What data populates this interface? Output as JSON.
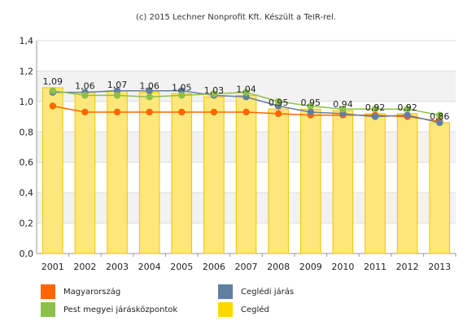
{
  "credit": "(c) 2015 Lechner Nonprofit Kft. Készült a TeIR-rel.",
  "chart_data": {
    "type": "bar",
    "categories": [
      "2001",
      "2002",
      "2003",
      "2004",
      "2005",
      "2006",
      "2007",
      "2008",
      "2009",
      "2010",
      "2011",
      "2012",
      "2013"
    ],
    "ylim": [
      0,
      1.4
    ],
    "yticks": [
      0,
      0.2,
      0.4,
      0.6,
      0.8,
      1.0,
      1.2,
      1.4
    ],
    "ytick_labels": [
      "0,0",
      "0,2",
      "0,4",
      "0,6",
      "0,8",
      "1,0",
      "1,2",
      "1,4"
    ],
    "grid": "horizontal",
    "legend_position": "bottom",
    "bar_series": {
      "name": "Cegléd",
      "color": "#fde77a",
      "edge_color": "#f2c200",
      "values": [
        1.09,
        1.06,
        1.07,
        1.06,
        1.05,
        1.03,
        1.04,
        0.95,
        0.95,
        0.94,
        0.92,
        0.92,
        0.86
      ],
      "value_labels": [
        "1,09",
        "1,06",
        "1,07",
        "1,06",
        "1,05",
        "1,03",
        "1,04",
        "0,95",
        "0,95",
        "0,94",
        "0,92",
        "0,92",
        "0,86"
      ]
    },
    "series": [
      {
        "name": "Magyarország",
        "color": "#ff6600",
        "values": [
          0.97,
          0.93,
          0.93,
          0.93,
          0.93,
          0.93,
          0.93,
          0.92,
          0.91,
          0.91,
          0.91,
          0.9,
          0.87
        ]
      },
      {
        "name": "Ceglédi járás",
        "color": "#617fa0",
        "values": [
          1.06,
          1.06,
          1.07,
          1.07,
          1.07,
          1.04,
          1.03,
          0.97,
          0.93,
          0.92,
          0.9,
          0.91,
          0.86
        ]
      },
      {
        "name": "Pest megyei járásközpontok",
        "color": "#8dc04b",
        "values": [
          1.07,
          1.04,
          1.04,
          1.03,
          1.04,
          1.05,
          1.06,
          1.0,
          0.97,
          0.95,
          0.95,
          0.95,
          0.91
        ]
      }
    ],
    "legend": [
      {
        "name": "Magyarország",
        "color": "#ff6600"
      },
      {
        "name": "Ceglédi járás",
        "color": "#617fa0"
      },
      {
        "name": "Pest megyei járásközpontok",
        "color": "#8dc04b"
      },
      {
        "name": "Cegléd",
        "color": "#ffd700"
      }
    ]
  }
}
